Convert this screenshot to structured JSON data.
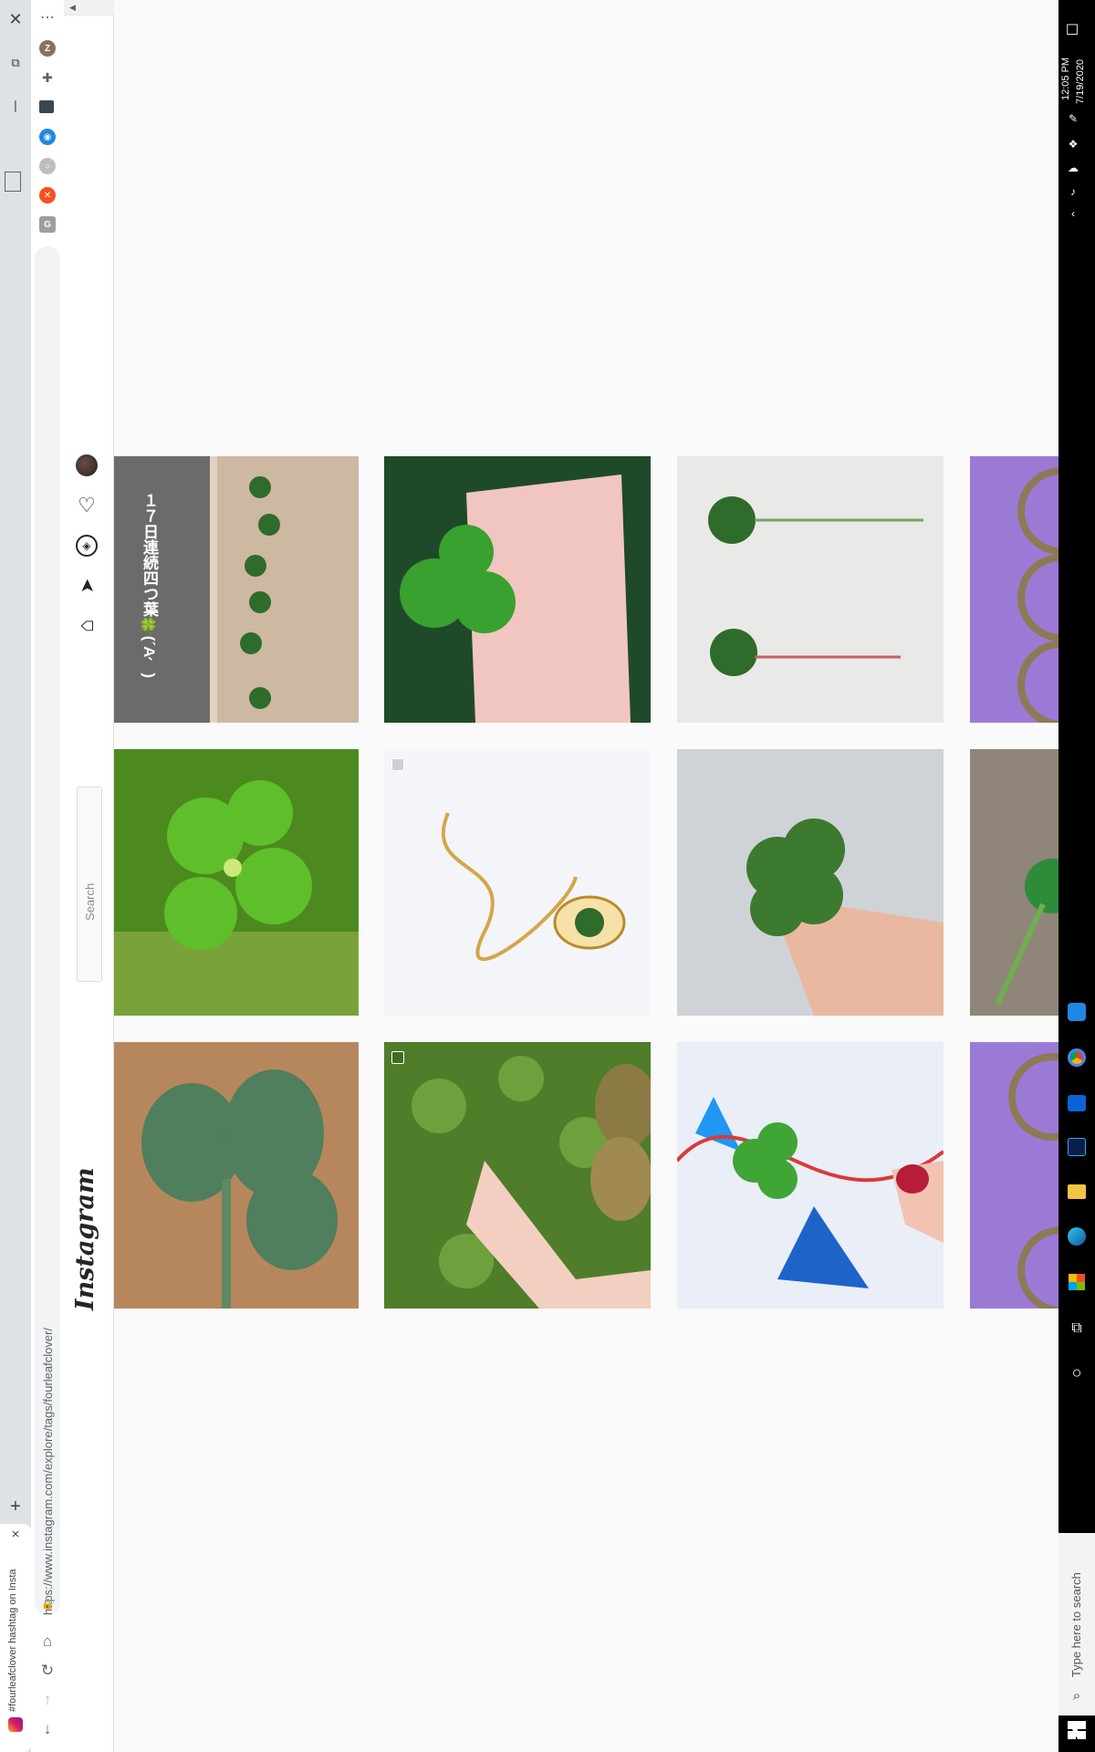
{
  "browser": {
    "tab_title": "#fourleafclover hashtag on Insta",
    "url": "https://www.instagram.com/explore/tags/fourleafclover/",
    "new_tab_glyph": "+",
    "close_tab_glyph": "×",
    "menu_glyph": "⋯",
    "extensions": [
      {
        "name": "profile-avatar",
        "label": "Z",
        "color": "#8d6e63"
      },
      {
        "name": "puzzle-extension",
        "label": "",
        "color": "#5f6368"
      },
      {
        "name": "extension-monitor",
        "label": "",
        "color": "#37474f"
      },
      {
        "name": "extension-blue",
        "label": "",
        "color": "#1e88e5"
      },
      {
        "name": "extension-circle",
        "label": "",
        "color": "#9e9e9e"
      },
      {
        "name": "extension-orange",
        "label": "",
        "color": "#f4511e"
      },
      {
        "name": "extension-g",
        "label": "G",
        "color": "#757575"
      }
    ]
  },
  "instagram": {
    "logo": "Instagram",
    "search_placeholder": "Search"
  },
  "posts": [
    {
      "name": "post-clovers-on-table",
      "overlay_text": "１７日連続四つ葉🍀(´A｀)"
    },
    {
      "name": "post-hand-holding-clover"
    },
    {
      "name": "post-two-clovers-white"
    },
    {
      "name": "post-metal-rings-purple"
    },
    {
      "name": "post-clover-in-grass"
    },
    {
      "name": "post-clover-pendant-necklace",
      "multi": true
    },
    {
      "name": "post-clover-fingers-stone"
    },
    {
      "name": "post-clover-on-concrete"
    },
    {
      "name": "post-large-clover-wood"
    },
    {
      "name": "post-hand-clover-lawn",
      "multi": true
    },
    {
      "name": "post-clover-blue-stars"
    },
    {
      "name": "post-metal-rings-purple-2"
    }
  ],
  "taskbar": {
    "time": "12:05 PM",
    "date": "7/19/2020",
    "search_placeholder": "Type here to search"
  },
  "colors": {
    "accent_instagram": "#262626",
    "taskbar": "#000000",
    "tabstrip": "#dee1e6"
  }
}
